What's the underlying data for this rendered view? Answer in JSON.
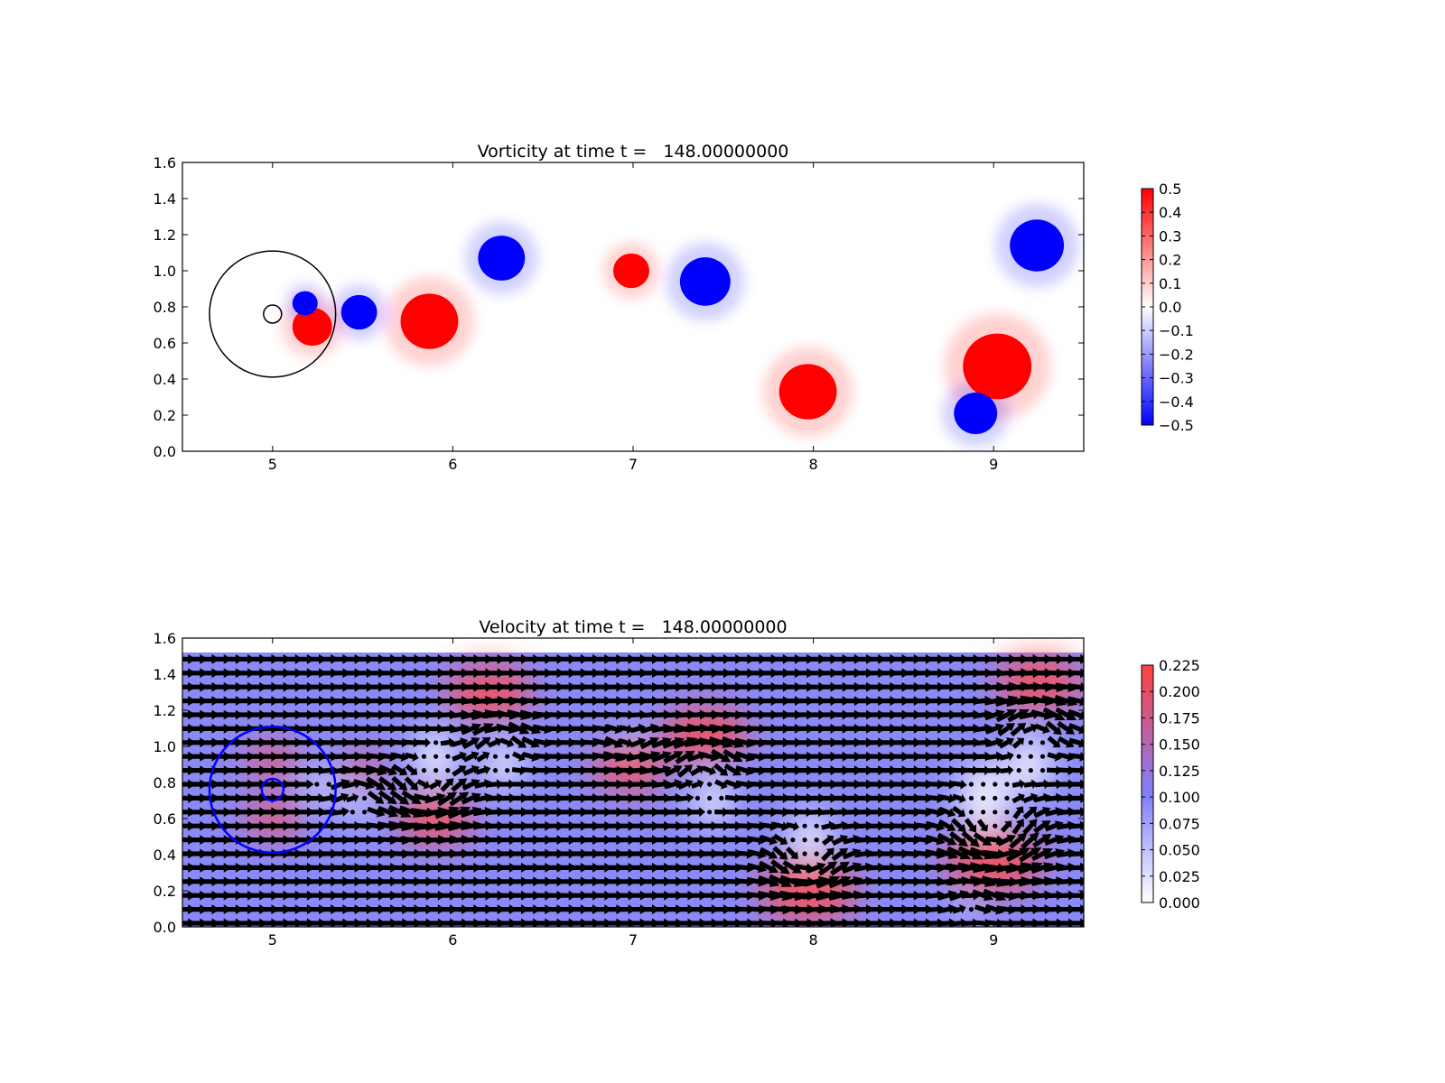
{
  "chart_data": [
    {
      "type": "heatmap",
      "title": "Vorticity at time t =   148.00000000",
      "xlabel": "",
      "ylabel": "",
      "xlim": [
        4.5,
        9.5
      ],
      "ylim": [
        0.0,
        1.6
      ],
      "x_ticks": [
        "5",
        "6",
        "7",
        "8",
        "9"
      ],
      "y_ticks": [
        "0.0",
        "0.2",
        "0.4",
        "0.6",
        "0.8",
        "1.0",
        "1.2",
        "1.4",
        "1.6"
      ],
      "grid": false,
      "colormap": {
        "low": "#0000ff",
        "mid": "#ffffff",
        "high": "#ff0000"
      },
      "colorbar": {
        "range": [
          -0.5,
          0.5
        ],
        "ticks": [
          "0.5",
          "0.4",
          "0.3",
          "0.2",
          "0.1",
          "0.0",
          "−0.1",
          "−0.2",
          "−0.3",
          "−0.4",
          "−0.5"
        ]
      },
      "vortices": [
        {
          "x": 5.87,
          "y": 0.72,
          "r": 0.16,
          "value": 0.5
        },
        {
          "x": 6.27,
          "y": 1.07,
          "r": 0.13,
          "value": -0.5
        },
        {
          "x": 6.99,
          "y": 1.0,
          "r": 0.1,
          "value": 0.5
        },
        {
          "x": 7.4,
          "y": 0.94,
          "r": 0.14,
          "value": -0.5
        },
        {
          "x": 7.97,
          "y": 0.33,
          "r": 0.16,
          "value": 0.5
        },
        {
          "x": 9.02,
          "y": 0.47,
          "r": 0.19,
          "value": 0.5
        },
        {
          "x": 9.24,
          "y": 1.14,
          "r": 0.15,
          "value": -0.5
        },
        {
          "x": 8.9,
          "y": 0.21,
          "r": 0.12,
          "value": -0.5
        },
        {
          "x": 5.48,
          "y": 0.77,
          "r": 0.1,
          "value": -0.5
        },
        {
          "x": 5.22,
          "y": 0.69,
          "r": 0.11,
          "value": 0.5
        },
        {
          "x": 5.18,
          "y": 0.82,
          "r": 0.07,
          "value": -0.5
        }
      ],
      "circles": [
        {
          "x": 5.0,
          "y": 0.76,
          "r": 0.35,
          "color": "#000000"
        },
        {
          "x": 5.0,
          "y": 0.76,
          "r": 0.05,
          "color": "#000000"
        }
      ]
    },
    {
      "type": "heatmap",
      "title": "Velocity at time t =   148.00000000",
      "xlabel": "",
      "ylabel": "",
      "xlim": [
        4.5,
        9.5
      ],
      "ylim": [
        0.0,
        1.6
      ],
      "field_ylim": [
        0.0,
        1.52
      ],
      "x_ticks": [
        "5",
        "6",
        "7",
        "8",
        "9"
      ],
      "y_ticks": [
        "0.0",
        "0.2",
        "0.4",
        "0.6",
        "0.8",
        "1.0",
        "1.2",
        "1.4",
        "1.6"
      ],
      "grid": false,
      "colormap": {
        "low": "#ffffff",
        "mid": "#8080ff",
        "high": "#ff4040"
      },
      "colorbar": {
        "range": [
          0.0,
          0.225
        ],
        "ticks": [
          "0.225",
          "0.200",
          "0.175",
          "0.150",
          "0.125",
          "0.100",
          "0.075",
          "0.050",
          "0.025",
          "0.000"
        ]
      },
      "background_speed": 0.1,
      "fast_regions": [
        {
          "x": 6.2,
          "y": 1.3,
          "r": 0.2,
          "speed": 0.23
        },
        {
          "x": 7.4,
          "y": 1.07,
          "r": 0.2,
          "speed": 0.22
        },
        {
          "x": 6.98,
          "y": 0.88,
          "r": 0.17,
          "speed": 0.2
        },
        {
          "x": 5.9,
          "y": 0.6,
          "r": 0.18,
          "speed": 0.2
        },
        {
          "x": 7.97,
          "y": 0.2,
          "r": 0.23,
          "speed": 0.23
        },
        {
          "x": 9.0,
          "y": 0.36,
          "r": 0.23,
          "speed": 0.23
        },
        {
          "x": 9.25,
          "y": 1.35,
          "r": 0.2,
          "speed": 0.22
        },
        {
          "x": 5.0,
          "y": 0.92,
          "r": 0.12,
          "speed": 0.17
        },
        {
          "x": 5.0,
          "y": 0.6,
          "r": 0.13,
          "speed": 0.17
        },
        {
          "x": 5.5,
          "y": 0.87,
          "r": 0.1,
          "speed": 0.16
        }
      ],
      "slow_regions": [
        {
          "x": 5.9,
          "y": 0.94,
          "r": 0.15,
          "speed": 0.0
        },
        {
          "x": 6.28,
          "y": 0.9,
          "r": 0.13,
          "speed": 0.0
        },
        {
          "x": 7.44,
          "y": 0.7,
          "r": 0.13,
          "speed": 0.0
        },
        {
          "x": 7.98,
          "y": 0.5,
          "r": 0.14,
          "speed": 0.0
        },
        {
          "x": 8.95,
          "y": 0.72,
          "r": 0.19,
          "speed": 0.0
        },
        {
          "x": 9.2,
          "y": 0.9,
          "r": 0.16,
          "speed": 0.0
        },
        {
          "x": 5.48,
          "y": 0.67,
          "r": 0.08,
          "speed": 0.0
        },
        {
          "x": 5.27,
          "y": 0.78,
          "r": 0.09,
          "speed": 0.0
        },
        {
          "x": 6.99,
          "y": 1.05,
          "r": 0.05,
          "speed": 0.0
        },
        {
          "x": 8.85,
          "y": 0.08,
          "r": 0.06,
          "speed": 0.02
        }
      ],
      "swirls": [
        {
          "x": 5.87,
          "y": 0.72,
          "r": 0.16,
          "sign": 1
        },
        {
          "x": 6.27,
          "y": 1.07,
          "r": 0.13,
          "sign": -1
        },
        {
          "x": 6.99,
          "y": 1.0,
          "r": 0.1,
          "sign": 1
        },
        {
          "x": 7.4,
          "y": 0.94,
          "r": 0.14,
          "sign": -1
        },
        {
          "x": 7.97,
          "y": 0.33,
          "r": 0.16,
          "sign": 1
        },
        {
          "x": 9.02,
          "y": 0.47,
          "r": 0.19,
          "sign": 1
        },
        {
          "x": 9.24,
          "y": 1.14,
          "r": 0.15,
          "sign": -1
        },
        {
          "x": 8.9,
          "y": 0.21,
          "r": 0.12,
          "sign": -1
        },
        {
          "x": 5.48,
          "y": 0.77,
          "r": 0.1,
          "sign": -1
        }
      ],
      "vectors": {
        "x_start": 4.52,
        "x_step": 0.066,
        "y_start": 0.02,
        "y_step": 0.077,
        "stagnant_below": 0.035
      },
      "circles": [
        {
          "x": 5.0,
          "y": 0.76,
          "r": 0.35,
          "color": "#0000ff"
        },
        {
          "x": 5.0,
          "y": 0.76,
          "r": 0.06,
          "color": "#0000ff"
        }
      ]
    }
  ]
}
